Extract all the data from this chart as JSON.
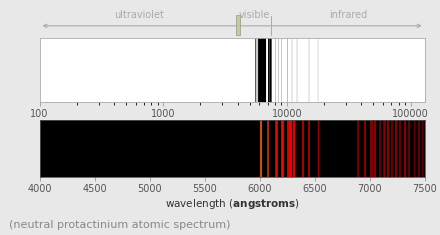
{
  "fig_bg": "#e8e8e8",
  "top_panel": {
    "xlim_log": [
      100,
      130000
    ],
    "xticks": [
      100,
      1000,
      10000,
      100000
    ],
    "xticklabels": [
      "100",
      "1000",
      "10000",
      "100000"
    ],
    "bg_color": "#ffffff",
    "xlabel": "wavelength",
    "xlabel2": "(angstroms)",
    "label_color": "#aaaaaa",
    "uv_label": "ultraviolet",
    "vis_label": "visible",
    "ir_label": "infrared",
    "uv_vis_boundary": 4000,
    "vis_ir_boundary": 7500,
    "log_xlim_min": 100,
    "log_xlim_max": 130000,
    "lines": [
      [
        5500,
        1.2
      ],
      [
        5700,
        0.8
      ],
      [
        5800,
        1.0
      ],
      [
        5900,
        1.5
      ],
      [
        5950,
        2.0
      ],
      [
        6000,
        3.0
      ],
      [
        6050,
        2.5
      ],
      [
        6100,
        2.0
      ],
      [
        6150,
        3.5
      ],
      [
        6200,
        5.0
      ],
      [
        6250,
        4.0
      ],
      [
        6300,
        5.5
      ],
      [
        6350,
        3.0
      ],
      [
        6400,
        4.5
      ],
      [
        6450,
        3.0
      ],
      [
        6500,
        4.0
      ],
      [
        6550,
        3.0
      ],
      [
        6600,
        2.0
      ],
      [
        6700,
        2.0
      ],
      [
        7000,
        1.5
      ],
      [
        7100,
        1.5
      ],
      [
        7200,
        1.5
      ],
      [
        7300,
        2.0
      ],
      [
        7400,
        1.2
      ],
      [
        8000,
        1.0
      ],
      [
        8500,
        1.0
      ],
      [
        9000,
        1.0
      ],
      [
        10000,
        1.2
      ],
      [
        11000,
        0.8
      ],
      [
        12000,
        0.8
      ],
      [
        15000,
        0.8
      ],
      [
        18000,
        0.7
      ]
    ]
  },
  "bottom_panel": {
    "xlim": [
      4000,
      7500
    ],
    "xticks": [
      4000,
      4500,
      5000,
      5500,
      6000,
      6500,
      7000,
      7500
    ],
    "bg_color": "#000000",
    "xlabel": "wavelength",
    "xlabel2": "(angstroms)",
    "spectral_lines": [
      {
        "wl": 6010,
        "color": "#c85000",
        "lw": 1.5
      },
      {
        "wl": 6080,
        "color": "#cc3300",
        "lw": 1.2
      },
      {
        "wl": 6150,
        "color": "#dd1100",
        "lw": 1.8
      },
      {
        "wl": 6200,
        "color": "#ff0000",
        "lw": 2.0
      },
      {
        "wl": 6255,
        "color": "#cc0000",
        "lw": 1.5
      },
      {
        "wl": 6280,
        "color": "#ee0000",
        "lw": 2.5
      },
      {
        "wl": 6310,
        "color": "#dd0000",
        "lw": 1.5
      },
      {
        "wl": 6390,
        "color": "#cc0000",
        "lw": 1.2
      },
      {
        "wl": 6450,
        "color": "#bb0000",
        "lw": 1.2
      },
      {
        "wl": 6530,
        "color": "#990000",
        "lw": 1.0
      },
      {
        "wl": 6890,
        "color": "#880000",
        "lw": 1.2
      },
      {
        "wl": 6960,
        "color": "#880000",
        "lw": 1.5
      },
      {
        "wl": 7010,
        "color": "#880000",
        "lw": 2.0
      },
      {
        "wl": 7050,
        "color": "#880000",
        "lw": 1.5
      },
      {
        "wl": 7090,
        "color": "#770000",
        "lw": 1.2
      },
      {
        "wl": 7130,
        "color": "#880000",
        "lw": 1.8
      },
      {
        "wl": 7170,
        "color": "#880000",
        "lw": 1.5
      },
      {
        "wl": 7200,
        "color": "#770000",
        "lw": 1.2
      },
      {
        "wl": 7240,
        "color": "#880000",
        "lw": 1.5
      },
      {
        "wl": 7280,
        "color": "#770000",
        "lw": 1.2
      },
      {
        "wl": 7320,
        "color": "#880000",
        "lw": 1.5
      },
      {
        "wl": 7360,
        "color": "#770000",
        "lw": 1.2
      },
      {
        "wl": 7400,
        "color": "#660000",
        "lw": 1.0
      },
      {
        "wl": 7450,
        "color": "#770000",
        "lw": 1.2
      },
      {
        "wl": 7480,
        "color": "#660000",
        "lw": 1.0
      }
    ]
  },
  "caption": "(neutral protactinium atomic spectrum)",
  "caption_color": "#888888",
  "caption_fontsize": 8
}
